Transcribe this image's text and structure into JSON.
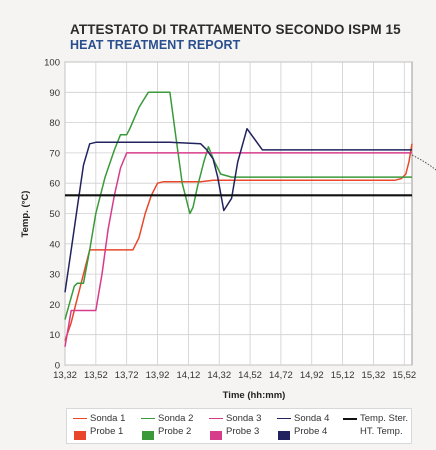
{
  "header": {
    "title": "ATTESTATO DI TRATTAMENTO SECONDO ISPM 15",
    "subtitle": "HEAT TREATMENT REPORT"
  },
  "chart_data": {
    "type": "line",
    "xlabel": "Time (hh:mm)",
    "ylabel": "Temp. (°C)",
    "xlim": [
      13.32,
      15.57
    ],
    "ylim": [
      0,
      100
    ],
    "x_ticks": [
      "13,32",
      "13,52",
      "13,72",
      "13,92",
      "14,12",
      "14,32",
      "14,52",
      "14,72",
      "14,92",
      "15,12",
      "15,32",
      "15,52"
    ],
    "y_ticks": [
      0,
      10,
      20,
      30,
      40,
      50,
      60,
      70,
      80,
      90,
      100
    ],
    "grid": true,
    "legend_placement": "bottom",
    "series": [
      {
        "name": "Sonda 1",
        "name2": "Probe 1",
        "color": "#e8472a",
        "x": [
          13.32,
          13.36,
          13.4,
          13.44,
          13.48,
          13.52,
          13.58,
          13.64,
          13.68,
          13.72,
          13.76,
          13.8,
          13.84,
          13.88,
          13.92,
          13.96,
          14.0,
          14.1,
          14.2,
          14.28,
          14.36,
          14.5,
          14.7,
          14.9,
          15.1,
          15.3,
          15.46,
          15.5,
          15.53,
          15.55,
          15.57
        ],
        "y": [
          8,
          14,
          22,
          30,
          38,
          38,
          38,
          38,
          38,
          38,
          38,
          42,
          50,
          56,
          60,
          60.5,
          60.5,
          60.5,
          60.5,
          61,
          61,
          61,
          61,
          61,
          61,
          61,
          61,
          61.5,
          63,
          67,
          73
        ]
      },
      {
        "name": "Sonda 2",
        "name2": "Probe 2",
        "color": "#3a9a3a",
        "x": [
          13.32,
          13.38,
          13.4,
          13.44,
          13.48,
          13.52,
          13.58,
          13.64,
          13.68,
          13.72,
          13.74,
          13.8,
          13.86,
          13.9,
          14.0,
          14.04,
          14.08,
          14.1,
          14.13,
          14.15,
          14.18,
          14.22,
          14.25,
          14.29,
          14.33,
          14.4,
          14.6,
          14.8,
          15.0,
          15.2,
          15.4,
          15.57
        ],
        "y": [
          15,
          26,
          27,
          27,
          38,
          50,
          62,
          71,
          76,
          76,
          78,
          85,
          90,
          90,
          90,
          75,
          60,
          56,
          50,
          52,
          59,
          67,
          72,
          67,
          63,
          62,
          62,
          62,
          62,
          62,
          62,
          62
        ]
      },
      {
        "name": "Sonda 3",
        "name2": "Probe 3",
        "color": "#d63c8a",
        "x": [
          13.32,
          13.36,
          13.4,
          13.44,
          13.48,
          13.52,
          13.56,
          13.6,
          13.64,
          13.68,
          13.72,
          13.8,
          13.9,
          14.0,
          14.1,
          14.2,
          14.3,
          14.4,
          14.6,
          14.8,
          15.0,
          15.2,
          15.4,
          15.57
        ],
        "y": [
          6,
          18,
          18,
          18,
          18,
          18,
          30,
          45,
          56,
          65,
          70,
          70,
          70,
          70,
          70,
          70,
          70,
          70,
          70,
          70,
          70,
          70,
          70,
          70
        ]
      },
      {
        "name": "Sonda 4",
        "name2": "Probe 4",
        "color": "#22235e",
        "x": [
          13.32,
          13.36,
          13.4,
          13.44,
          13.48,
          13.52,
          13.6,
          13.8,
          14.0,
          14.2,
          14.24,
          14.28,
          14.31,
          14.35,
          14.4,
          14.44,
          14.5,
          14.6,
          14.8,
          15.0,
          15.2,
          15.4,
          15.57
        ],
        "y": [
          24,
          38,
          52,
          66,
          73,
          73.5,
          73.5,
          73.5,
          73.5,
          73,
          71,
          68,
          62,
          51,
          55,
          67,
          78,
          71,
          71,
          71,
          71,
          71,
          71
        ]
      },
      {
        "name": "Temp. Ster.",
        "name2": "HT. Temp.",
        "color": "#111111",
        "x": [
          13.32,
          15.57
        ],
        "y": [
          56,
          56
        ]
      }
    ]
  }
}
